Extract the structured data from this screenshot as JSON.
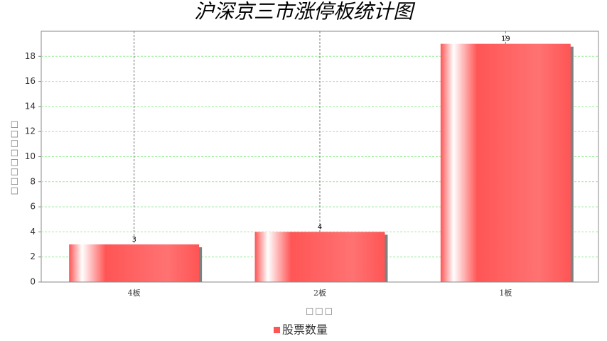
{
  "chart_data": {
    "type": "bar",
    "title": "沪深京三市涨停板统计图",
    "x_label": "□□□",
    "y_label": "□□□□□□□□",
    "categories": [
      "4板",
      "2板",
      "1板"
    ],
    "series": [
      {
        "name": "股票数量",
        "color": "#ff5555",
        "values": [
          3,
          4,
          19
        ]
      }
    ],
    "ylim": [
      0,
      20
    ],
    "yticks": [
      0,
      2,
      4,
      6,
      8,
      10,
      12,
      14,
      16,
      18
    ],
    "grid": true,
    "legend": "bottom"
  }
}
